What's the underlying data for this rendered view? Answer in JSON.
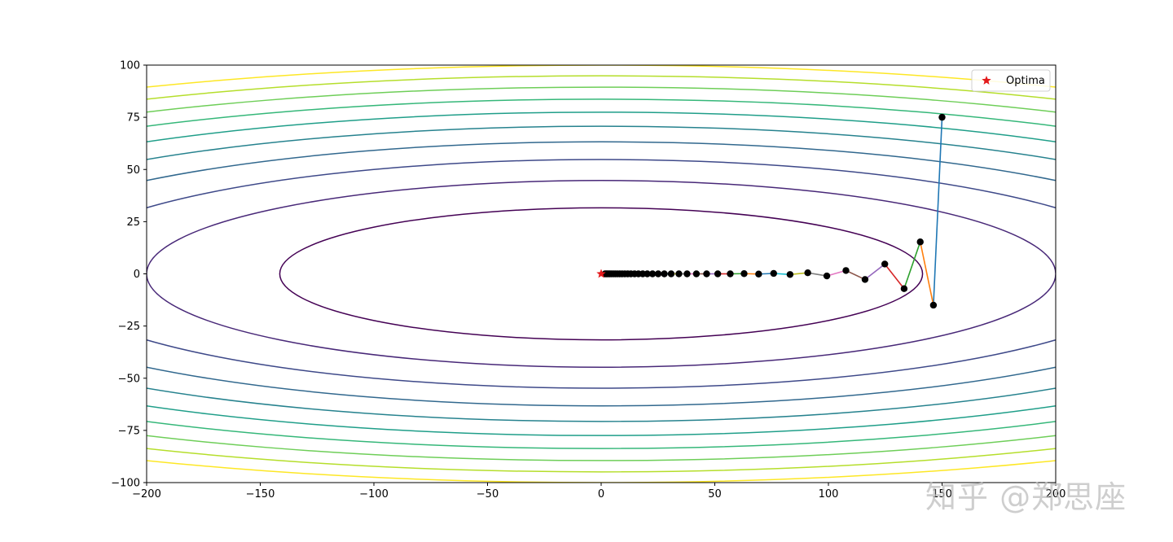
{
  "chart_data": {
    "type": "line",
    "title": "",
    "xlabel": "",
    "ylabel": "",
    "xlim": [
      -200,
      200
    ],
    "ylim": [
      -100,
      100
    ],
    "x_ticks": [
      -200,
      -150,
      -100,
      -50,
      0,
      50,
      100,
      150,
      200
    ],
    "y_ticks": [
      -100,
      -75,
      -50,
      -25,
      0,
      25,
      50,
      75,
      100
    ],
    "x_tick_labels": [
      "−200",
      "−150",
      "−100",
      "−50",
      "0",
      "50",
      "100",
      "150",
      "200"
    ],
    "y_tick_labels": [
      "−100",
      "−75",
      "−50",
      "−25",
      "0",
      "25",
      "50",
      "75",
      "100"
    ],
    "grid": false,
    "contour": {
      "function": "f(x, y) = x^2/20 + y^2",
      "levels": [
        1000,
        2000,
        3000,
        4000,
        5000,
        6000,
        7000,
        8000,
        9000,
        10000
      ],
      "colormap": [
        "#440154",
        "#482878",
        "#3e4989",
        "#31688e",
        "#26828e",
        "#1f9e89",
        "#35b779",
        "#6ece58",
        "#b5de2b",
        "#fde725"
      ]
    },
    "optimizer_path": {
      "points": [
        [
          150,
          75
        ],
        [
          146.2,
          -15
        ],
        [
          140.4,
          15.3
        ],
        [
          133.3,
          -7.1
        ],
        [
          124.8,
          4.7
        ],
        [
          116.1,
          -2.7
        ],
        [
          107.7,
          1.6
        ],
        [
          99.3,
          -1.0
        ],
        [
          90.9,
          0.5
        ],
        [
          83.1,
          -0.3
        ],
        [
          75.9,
          0.2
        ],
        [
          69.3,
          -0.1
        ],
        [
          62.9,
          0.1
        ],
        [
          56.8,
          0
        ],
        [
          51.3,
          0
        ],
        [
          46.4,
          0
        ],
        [
          41.9,
          0
        ],
        [
          37.8,
          0
        ],
        [
          34.2,
          0
        ],
        [
          30.8,
          0
        ],
        [
          27.8,
          0
        ],
        [
          25.1,
          0
        ],
        [
          22.6,
          0
        ],
        [
          20.3,
          0
        ],
        [
          18.3,
          0
        ],
        [
          16.4,
          0
        ],
        [
          14.7,
          0
        ],
        [
          13.1,
          0
        ],
        [
          11.7,
          0
        ],
        [
          10.4,
          0
        ],
        [
          9.2,
          0
        ],
        [
          8.1,
          0
        ],
        [
          7.1,
          0
        ],
        [
          6.2,
          0
        ],
        [
          5.4,
          0
        ],
        [
          4.6,
          0
        ],
        [
          3.9,
          0
        ],
        [
          3.3,
          0
        ],
        [
          2.7,
          0
        ],
        [
          2.2,
          0
        ],
        [
          1.7,
          0
        ]
      ],
      "segment_colors": [
        "#1f77b4",
        "#ff7f0e",
        "#2ca02c",
        "#d62728",
        "#9467bd",
        "#8c564b",
        "#e377c2",
        "#7f7f7f",
        "#bcbd22",
        "#17becf"
      ],
      "marker_color": "#000000"
    },
    "optima": {
      "x": 0,
      "y": 0,
      "label": "Optima",
      "color": "#e31a1c"
    },
    "legend": {
      "position": "top-right",
      "entries": [
        "Optima"
      ]
    }
  },
  "watermark": "知乎 @郑思座"
}
